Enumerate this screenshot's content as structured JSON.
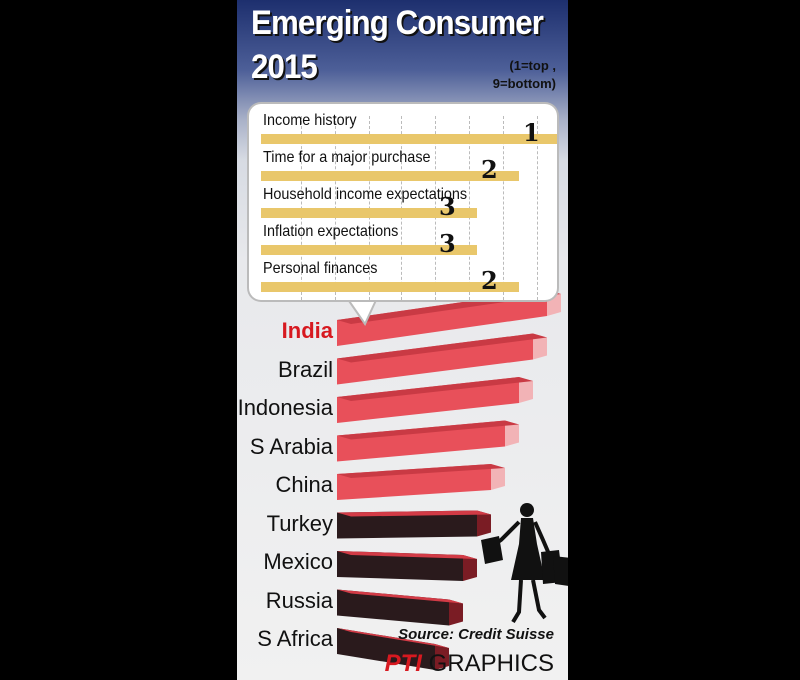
{
  "title_line1": "Emerging Consumer",
  "title_line2": "2015",
  "scale_note_line1": "(1=top ,",
  "scale_note_line2": "9=bottom)",
  "source": "Source: Credit Suisse",
  "brand_pti": "PTI",
  "brand_graphics": "GRAPHICS",
  "colors": {
    "highlight": "#d71920",
    "bar_gold": "#e9c76b",
    "bar_red": "#e8505a",
    "bar_dark": "#2a1a1c"
  },
  "chart_data": [
    {
      "type": "bar",
      "title": "Emerging Consumer 2015",
      "subtitle": "",
      "xlabel": "",
      "ylabel": "",
      "categories": [
        "Income history",
        "Time for a major purchase",
        "Household income expectations",
        "Inflation expectations",
        "Personal finances"
      ],
      "values": [
        1,
        2,
        3,
        3,
        2
      ],
      "note": "India rank (1=top , 9=bottom)"
    },
    {
      "type": "bar",
      "categories": [
        "India",
        "Brazil",
        "Indonesia",
        "S Arabia",
        "China",
        "Turkey",
        "Mexico",
        "Russia",
        "S Africa"
      ],
      "values": [
        1,
        2,
        3,
        4,
        5,
        6,
        7,
        8,
        9
      ],
      "highlight": "India"
    }
  ]
}
